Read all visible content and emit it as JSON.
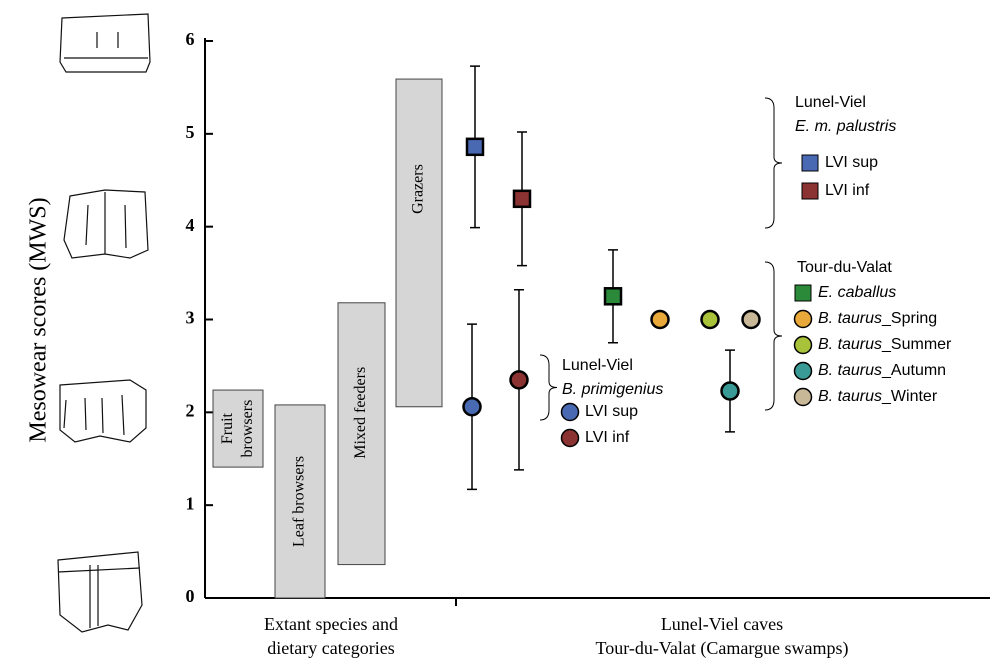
{
  "chart_data": {
    "type": "range-and-error",
    "ylabel": "Mesowear scores (MWS)",
    "ylim": [
      0,
      6
    ],
    "yticks": [
      0,
      1,
      2,
      3,
      4,
      5,
      6
    ],
    "xgroups": [
      "Extant species and\ndietary categories",
      "Lunel-Viel caves\nTour-du-Valat (Camargue swamps)"
    ],
    "ranges": [
      {
        "label": "Fruit\nbrowsers",
        "low": 1.41,
        "high": 2.24
      },
      {
        "label": "Leaf browsers",
        "low": 0,
        "high": 2.08
      },
      {
        "label": "Mixed feeders",
        "low": 0.36,
        "high": 3.18
      },
      {
        "label": "Grazers",
        "low": 2.06,
        "high": 5.59
      }
    ],
    "groups": [
      {
        "title": "Lunel-Viel",
        "subtitle": "E. m. palustris",
        "series": [
          {
            "name": "LVI sup",
            "color": "#4a69b3",
            "marker": "square",
            "values": [
              4.86
            ],
            "errors": [
              0.87
            ]
          },
          {
            "name": "LVI inf",
            "color": "#8b3232",
            "marker": "square",
            "values": [
              4.3
            ],
            "errors": [
              0.72
            ]
          }
        ]
      },
      {
        "title": "Lunel-Viel",
        "subtitle": "B. primigenius",
        "series": [
          {
            "name": "LVI sup",
            "color": "#4a69b3",
            "marker": "circle",
            "values": [
              2.06
            ],
            "errors": [
              0.89
            ]
          },
          {
            "name": "LVI inf",
            "color": "#8b3232",
            "marker": "circle",
            "values": [
              2.35
            ],
            "errors": [
              0.97
            ]
          }
        ]
      },
      {
        "title": "Tour-du-Valat",
        "series": [
          {
            "name": "E. caballus",
            "color": "#2a8a3a",
            "marker": "square",
            "values": [
              3.25
            ],
            "errors": [
              0.5
            ]
          },
          {
            "name": "B. taurus_Spring",
            "color": "#e8a93a",
            "marker": "circle",
            "values": [
              3
            ]
          },
          {
            "name": "B. taurus_Summer",
            "color": "#a8c23a",
            "marker": "circle",
            "values": [
              3
            ]
          },
          {
            "name": "B. taurus_Autumn",
            "color": "#3a9a95",
            "marker": "circle",
            "values": [
              2.23
            ],
            "errors": [
              0.44
            ]
          },
          {
            "name": "B. taurus_Winter",
            "color": "#c8b898",
            "marker": "circle",
            "values": [
              3
            ]
          }
        ]
      }
    ]
  }
}
